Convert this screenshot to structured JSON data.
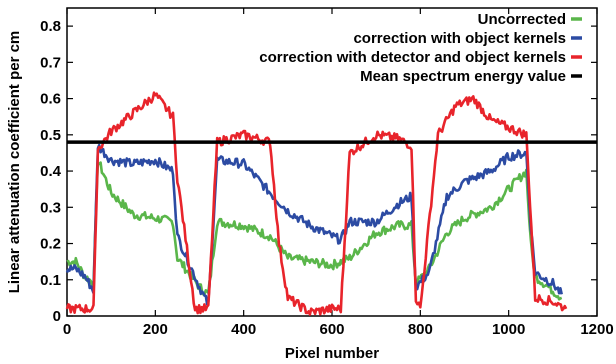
{
  "chart_data": {
    "type": "line",
    "title": "",
    "xlabel": "Pixel number",
    "ylabel": "Linear attenuation coefficient per cm",
    "xlim": [
      0,
      1200
    ],
    "ylim": [
      0,
      0.85
    ],
    "xticks": [
      0,
      200,
      400,
      600,
      800,
      1000,
      1200
    ],
    "yticks": [
      0,
      0.1,
      0.2,
      0.3,
      0.4,
      0.5,
      0.6,
      0.7,
      0.8
    ],
    "xtick_labels": [
      "0",
      "200",
      "400",
      "600",
      "800",
      "1000",
      "1200"
    ],
    "ytick_labels": [
      "0",
      "0.1",
      "0.2",
      "0.3",
      "0.4",
      "0.5",
      "0.6",
      "0.7",
      "0.8"
    ],
    "grid": false,
    "legend_position": "top-right",
    "series": [
      {
        "name": "Uncorrected",
        "color": "#5ab64a",
        "points": [
          [
            0,
            0.15
          ],
          [
            20,
            0.15
          ],
          [
            40,
            0.11
          ],
          [
            60,
            0.09
          ],
          [
            70,
            0.43
          ],
          [
            100,
            0.34
          ],
          [
            150,
            0.28
          ],
          [
            200,
            0.27
          ],
          [
            240,
            0.26
          ],
          [
            250,
            0.16
          ],
          [
            300,
            0.08
          ],
          [
            320,
            0.06
          ],
          [
            340,
            0.26
          ],
          [
            400,
            0.25
          ],
          [
            460,
            0.22
          ],
          [
            500,
            0.16
          ],
          [
            550,
            0.15
          ],
          [
            600,
            0.14
          ],
          [
            620,
            0.15
          ],
          [
            640,
            0.16
          ],
          [
            700,
            0.23
          ],
          [
            750,
            0.25
          ],
          [
            780,
            0.25
          ],
          [
            790,
            0.09
          ],
          [
            820,
            0.13
          ],
          [
            860,
            0.23
          ],
          [
            900,
            0.27
          ],
          [
            960,
            0.3
          ],
          [
            1000,
            0.35
          ],
          [
            1040,
            0.4
          ],
          [
            1050,
            0.2
          ],
          [
            1060,
            0.11
          ],
          [
            1100,
            0.07
          ],
          [
            1120,
            0.05
          ]
        ]
      },
      {
        "name": "correction with object kernels",
        "color": "#2c4ba3",
        "points": [
          [
            0,
            0.13
          ],
          [
            20,
            0.13
          ],
          [
            40,
            0.11
          ],
          [
            60,
            0.07
          ],
          [
            70,
            0.47
          ],
          [
            100,
            0.43
          ],
          [
            150,
            0.42
          ],
          [
            200,
            0.43
          ],
          [
            240,
            0.4
          ],
          [
            250,
            0.22
          ],
          [
            300,
            0.08
          ],
          [
            320,
            0.03
          ],
          [
            340,
            0.43
          ],
          [
            400,
            0.42
          ],
          [
            460,
            0.34
          ],
          [
            500,
            0.29
          ],
          [
            550,
            0.25
          ],
          [
            600,
            0.22
          ],
          [
            620,
            0.21
          ],
          [
            640,
            0.26
          ],
          [
            700,
            0.26
          ],
          [
            750,
            0.31
          ],
          [
            780,
            0.33
          ],
          [
            790,
            0.08
          ],
          [
            820,
            0.12
          ],
          [
            860,
            0.33
          ],
          [
            900,
            0.37
          ],
          [
            960,
            0.4
          ],
          [
            1000,
            0.44
          ],
          [
            1040,
            0.45
          ],
          [
            1050,
            0.25
          ],
          [
            1060,
            0.12
          ],
          [
            1100,
            0.09
          ],
          [
            1120,
            0.06
          ]
        ]
      },
      {
        "name": "correction with detector and object kernels",
        "color": "#e8242b",
        "points": [
          [
            0,
            0.02
          ],
          [
            20,
            0.02
          ],
          [
            40,
            0.02
          ],
          [
            60,
            0.02
          ],
          [
            70,
            0.46
          ],
          [
            100,
            0.51
          ],
          [
            150,
            0.56
          ],
          [
            200,
            0.61
          ],
          [
            240,
            0.55
          ],
          [
            250,
            0.38
          ],
          [
            290,
            0.02
          ],
          [
            320,
            0.02
          ],
          [
            340,
            0.48
          ],
          [
            400,
            0.5
          ],
          [
            460,
            0.48
          ],
          [
            480,
            0.2
          ],
          [
            500,
            0.05
          ],
          [
            550,
            0.01
          ],
          [
            600,
            0.02
          ],
          [
            620,
            0.02
          ],
          [
            640,
            0.45
          ],
          [
            700,
            0.5
          ],
          [
            750,
            0.49
          ],
          [
            780,
            0.47
          ],
          [
            790,
            0.05
          ],
          [
            800,
            0.02
          ],
          [
            840,
            0.5
          ],
          [
            880,
            0.58
          ],
          [
            920,
            0.6
          ],
          [
            960,
            0.54
          ],
          [
            1000,
            0.52
          ],
          [
            1040,
            0.5
          ],
          [
            1060,
            0.05
          ],
          [
            1100,
            0.04
          ],
          [
            1130,
            0.02
          ]
        ]
      },
      {
        "name": "Mean spectrum energy value",
        "color": "#000000",
        "points": [
          [
            0,
            0.48
          ],
          [
            1200,
            0.48
          ]
        ]
      }
    ]
  }
}
